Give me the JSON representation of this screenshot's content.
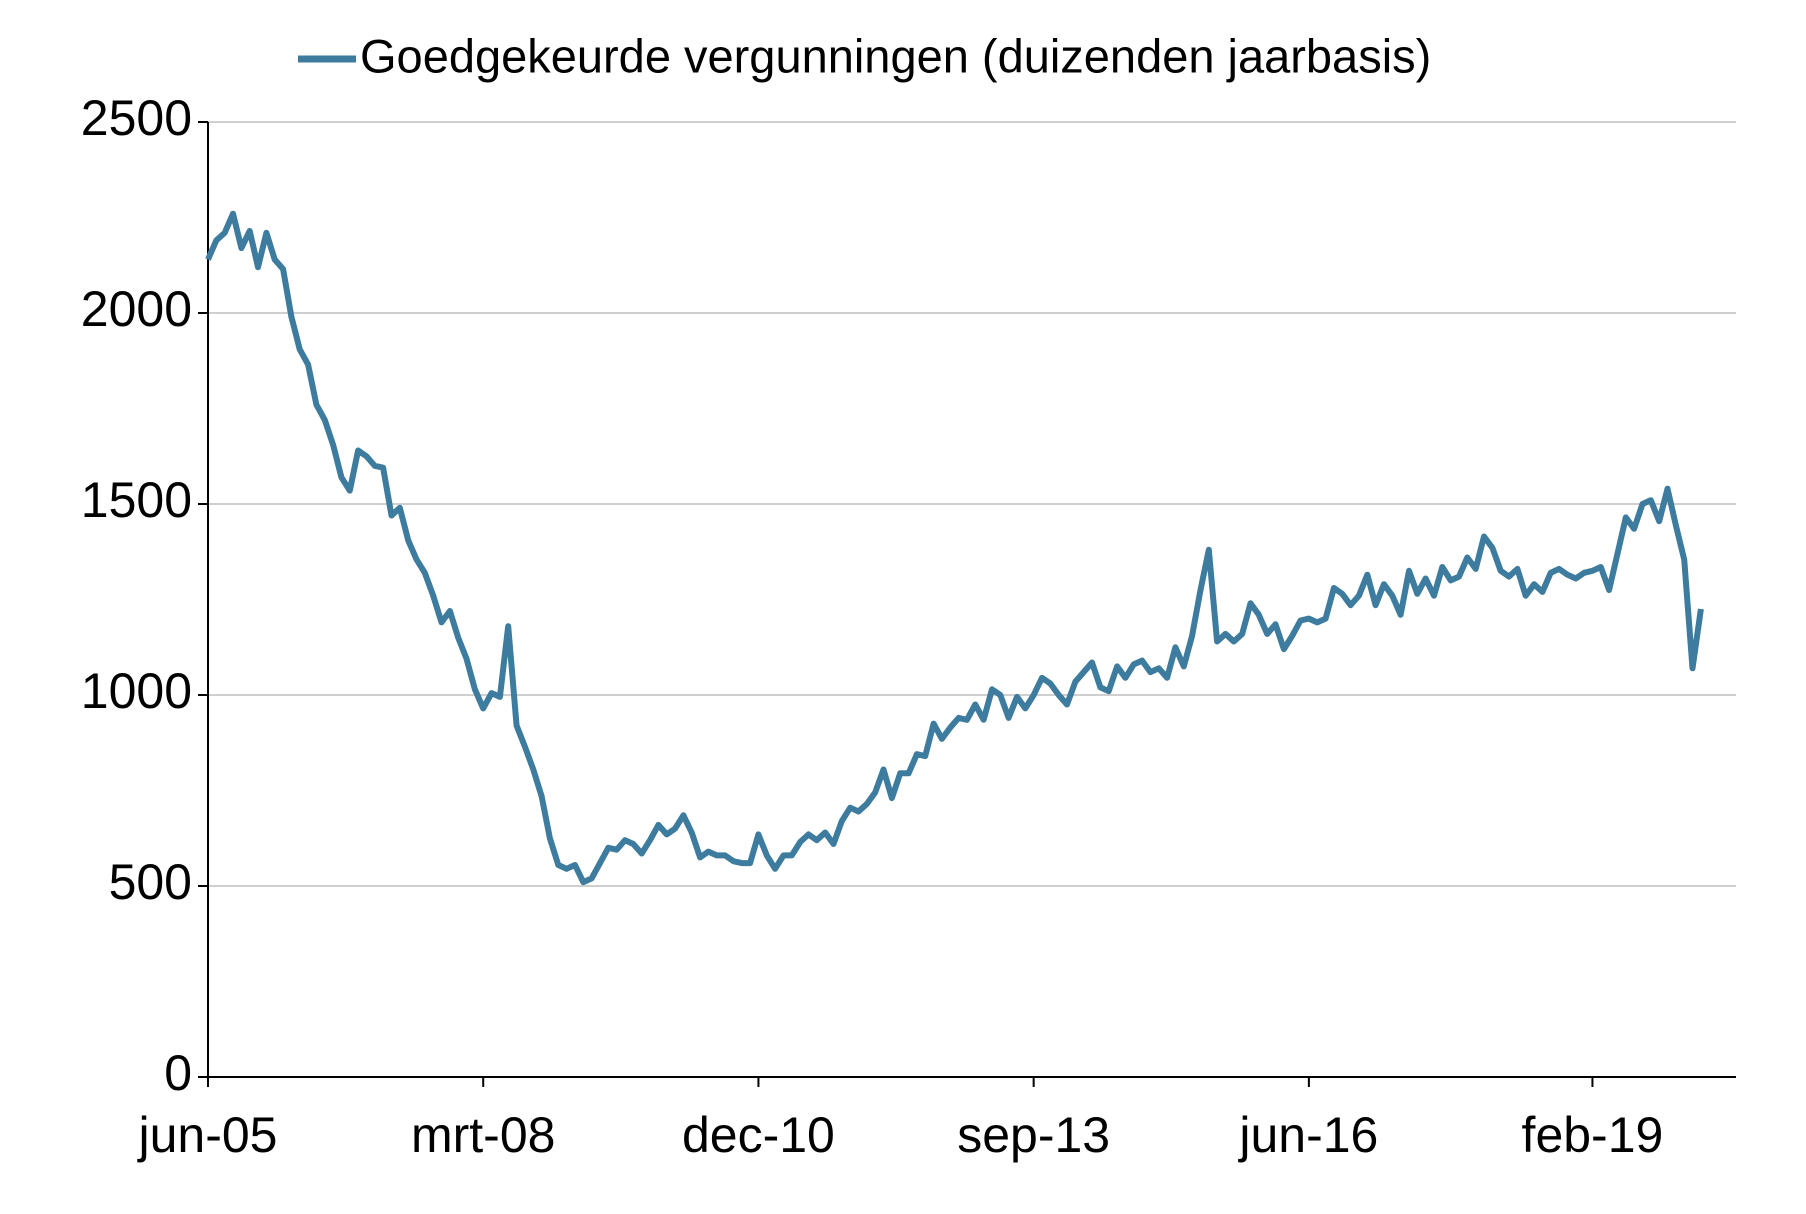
{
  "chart_data": {
    "type": "line",
    "categories": [
      "jun-05",
      null,
      null,
      null,
      null,
      null,
      null,
      null,
      null,
      null,
      null,
      null,
      null,
      null,
      null,
      null,
      null,
      null,
      null,
      null,
      null,
      null,
      null,
      null,
      null,
      null,
      null,
      null,
      null,
      null,
      null,
      null,
      null,
      "mrt-08",
      null,
      null,
      null,
      null,
      null,
      null,
      null,
      null,
      null,
      null,
      null,
      null,
      null,
      null,
      null,
      null,
      null,
      null,
      null,
      null,
      null,
      null,
      null,
      null,
      null,
      null,
      null,
      null,
      null,
      null,
      null,
      null,
      "dec-10",
      null,
      null,
      null,
      null,
      null,
      null,
      null,
      null,
      null,
      null,
      null,
      null,
      null,
      null,
      null,
      null,
      null,
      null,
      null,
      null,
      null,
      null,
      null,
      null,
      null,
      null,
      null,
      null,
      null,
      null,
      null,
      null,
      "sep-13",
      null,
      null,
      null,
      null,
      null,
      null,
      null,
      null,
      null,
      null,
      null,
      null,
      null,
      null,
      null,
      null,
      null,
      null,
      null,
      null,
      null,
      null,
      null,
      null,
      null,
      null,
      null,
      null,
      null,
      null,
      null,
      null,
      "jun-16",
      null,
      null,
      null,
      null,
      null,
      null,
      null,
      null,
      null,
      null,
      null,
      null,
      null,
      null,
      null,
      null,
      null,
      null,
      null,
      null,
      null,
      null,
      null,
      null,
      null,
      null,
      null,
      null,
      null,
      null,
      null,
      null,
      null,
      "feb-19",
      null,
      null,
      null,
      null,
      null,
      null,
      null,
      null,
      null,
      null,
      null,
      null,
      null
    ],
    "series": [
      {
        "name": "Goedgekeurde vergunningen (duizenden jaarbasis)",
        "color": "#3d7c9e",
        "values": [
          2140,
          2190,
          2210,
          2260,
          2170,
          2215,
          2120,
          2210,
          2140,
          2115,
          1990,
          1905,
          1865,
          1760,
          1720,
          1655,
          1570,
          1535,
          1640,
          1625,
          1600,
          1595,
          1470,
          1490,
          1405,
          1355,
          1320,
          1260,
          1190,
          1220,
          1150,
          1095,
          1015,
          965,
          1005,
          995,
          1180,
          920,
          865,
          805,
          735,
          625,
          555,
          545,
          555,
          510,
          520,
          560,
          600,
          595,
          620,
          610,
          585,
          620,
          660,
          635,
          650,
          685,
          640,
          575,
          590,
          580,
          580,
          565,
          560,
          560,
          635,
          580,
          545,
          580,
          580,
          615,
          635,
          620,
          640,
          610,
          670,
          705,
          695,
          715,
          745,
          805,
          730,
          795,
          795,
          845,
          840,
          925,
          885,
          915,
          940,
          935,
          975,
          935,
          1015,
          1000,
          940,
          995,
          965,
          1000,
          1045,
          1030,
          1000,
          975,
          1035,
          1060,
          1085,
          1020,
          1010,
          1075,
          1045,
          1080,
          1090,
          1060,
          1070,
          1045,
          1125,
          1075,
          1155,
          1275,
          1380,
          1140,
          1160,
          1140,
          1160,
          1240,
          1210,
          1160,
          1185,
          1120,
          1155,
          1195,
          1200,
          1190,
          1200,
          1280,
          1265,
          1235,
          1260,
          1315,
          1235,
          1290,
          1260,
          1210,
          1325,
          1265,
          1305,
          1260,
          1335,
          1300,
          1310,
          1360,
          1330,
          1415,
          1385,
          1325,
          1310,
          1330,
          1260,
          1290,
          1270,
          1320,
          1330,
          1315,
          1305,
          1320,
          1325,
          1335,
          1275,
          1370,
          1465,
          1435,
          1500,
          1510,
          1455,
          1540,
          1445,
          1355,
          1070,
          1225
        ]
      }
    ],
    "ylim": [
      0,
      2500
    ],
    "yticks": [
      0,
      500,
      1000,
      1500,
      2000,
      2500
    ],
    "grid": true,
    "legend": "top"
  }
}
